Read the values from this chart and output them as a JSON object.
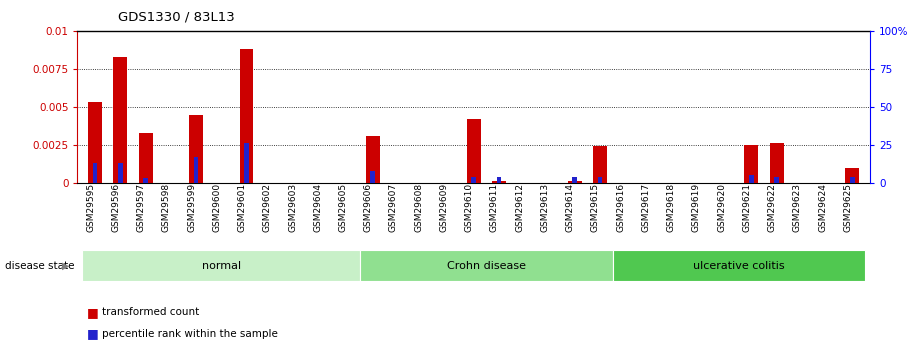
{
  "title": "GDS1330 / 83L13",
  "samples": [
    "GSM29595",
    "GSM29596",
    "GSM29597",
    "GSM29598",
    "GSM29599",
    "GSM29600",
    "GSM29601",
    "GSM29602",
    "GSM29603",
    "GSM29604",
    "GSM29605",
    "GSM29606",
    "GSM29607",
    "GSM29608",
    "GSM29609",
    "GSM29610",
    "GSM29611",
    "GSM29612",
    "GSM29613",
    "GSM29614",
    "GSM29615",
    "GSM29616",
    "GSM29617",
    "GSM29618",
    "GSM29619",
    "GSM29620",
    "GSM29621",
    "GSM29622",
    "GSM29623",
    "GSM29624",
    "GSM29625"
  ],
  "transformed_count": [
    0.0053,
    0.0083,
    0.0033,
    0.0,
    0.0045,
    0.0,
    0.0088,
    0.0,
    0.0,
    0.0,
    0.0,
    0.0031,
    0.0,
    0.0,
    0.0,
    0.0042,
    0.0001,
    0.0,
    0.0,
    0.0001,
    0.0024,
    0.0,
    0.0,
    0.0,
    0.0,
    0.0,
    0.0025,
    0.0026,
    0.0,
    0.0,
    0.001
  ],
  "percentile_rank": [
    13,
    13,
    3,
    0,
    17,
    0,
    26,
    0,
    0,
    0,
    0,
    8,
    0,
    0,
    0,
    4,
    4,
    0,
    0,
    4,
    4,
    0,
    0,
    0,
    0,
    0,
    5,
    4,
    0,
    0,
    4
  ],
  "disease_groups": [
    {
      "label": "normal",
      "start": 0,
      "end": 10,
      "color": "#c8f0c8"
    },
    {
      "label": "Crohn disease",
      "start": 11,
      "end": 20,
      "color": "#90e090"
    },
    {
      "label": "ulcerative colitis",
      "start": 21,
      "end": 30,
      "color": "#50c850"
    }
  ],
  "ylim_left": [
    0,
    0.01
  ],
  "ylim_right": [
    0,
    100
  ],
  "yticks_left": [
    0,
    0.0025,
    0.005,
    0.0075,
    0.01
  ],
  "yticks_right": [
    0,
    25,
    50,
    75,
    100
  ],
  "bar_color_red": "#cc0000",
  "bar_color_blue": "#2222cc",
  "bg_color": "#ffffff",
  "legend_red": "transformed count",
  "legend_blue": "percentile rank within the sample",
  "disease_state_label": "disease state"
}
